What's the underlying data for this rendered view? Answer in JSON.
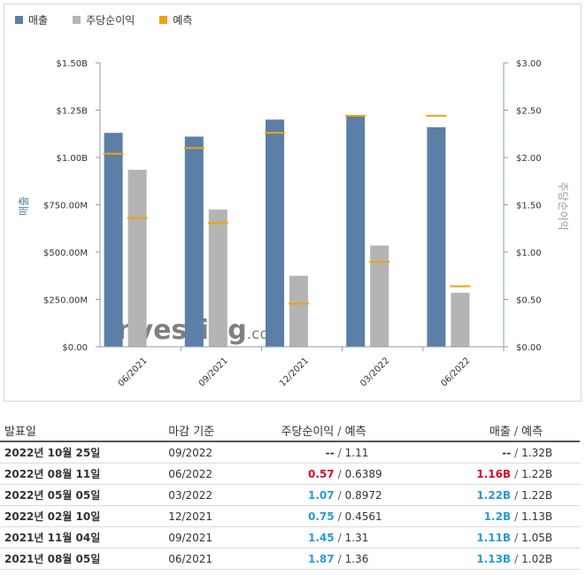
{
  "legend": {
    "revenue": {
      "label": "매출",
      "color": "#5b7fa6"
    },
    "eps": {
      "label": "주당순이익",
      "color": "#b4b4b4"
    },
    "forecast": {
      "label": "예측",
      "color": "#f0a30a"
    }
  },
  "chart_data": {
    "type": "bar",
    "categories": [
      "06/2021",
      "09/2021",
      "12/2021",
      "03/2022",
      "06/2022"
    ],
    "series": [
      {
        "name": "매출",
        "axis": "left",
        "values": [
          1.13,
          1.11,
          1.2,
          1.22,
          1.16
        ],
        "unit": "B"
      },
      {
        "name": "주당순이익",
        "axis": "right",
        "values": [
          1.87,
          1.45,
          0.75,
          1.07,
          0.57
        ]
      }
    ],
    "forecast_revenue": [
      1.02,
      1.05,
      1.13,
      1.22,
      1.22
    ],
    "forecast_eps": [
      1.36,
      1.31,
      0.4561,
      0.8972,
      0.6389
    ],
    "ylabel_left": "매출",
    "ylabel_right": "주당순이익",
    "ylim_left": [
      0,
      1.5
    ],
    "ylim_right": [
      0,
      3.0
    ],
    "left_ticks": [
      "$0.00",
      "$250.00M",
      "$500.00M",
      "$750.00M",
      "$1.00B",
      "$1.25B",
      "$1.50B"
    ],
    "right_ticks": [
      "$0.00",
      "$0.50",
      "$1.00",
      "$1.50",
      "$2.00",
      "$2.50",
      "$3.00"
    ],
    "watermark": "Investing.com",
    "grid": false
  },
  "table": {
    "headers": {
      "date": "발표일",
      "period": "마감 기준",
      "eps": "주당순이익",
      "eps_forecast": "예측",
      "revenue": "매출",
      "revenue_forecast": "예측"
    },
    "slash": "/",
    "rows": [
      {
        "date": "2022년 10월 25일",
        "period": "09/2022",
        "eps": "--",
        "eps_forecast": "1.11",
        "revenue": "--",
        "revenue_forecast": "1.32B"
      },
      {
        "date": "2022년 08월 11일",
        "period": "06/2022",
        "eps": "0.57",
        "eps_forecast": "0.6389",
        "revenue": "1.16B",
        "revenue_forecast": "1.22B"
      },
      {
        "date": "2022년 05월 05일",
        "period": "03/2022",
        "eps": "1.07",
        "eps_forecast": "0.8972",
        "revenue": "1.22B",
        "revenue_forecast": "1.22B"
      },
      {
        "date": "2022년 02월 10일",
        "period": "12/2021",
        "eps": "0.75",
        "eps_forecast": "0.4561",
        "revenue": "1.2B",
        "revenue_forecast": "1.13B"
      },
      {
        "date": "2021년 11월 04일",
        "period": "09/2021",
        "eps": "1.45",
        "eps_forecast": "1.31",
        "revenue": "1.11B",
        "revenue_forecast": "1.05B"
      },
      {
        "date": "2021년 08월 05일",
        "period": "06/2021",
        "eps": "1.87",
        "eps_forecast": "1.36",
        "revenue": "1.13B",
        "revenue_forecast": "1.02B"
      }
    ]
  },
  "colors": {
    "beat": "#2a9ad5",
    "miss": "#d40a2a"
  }
}
